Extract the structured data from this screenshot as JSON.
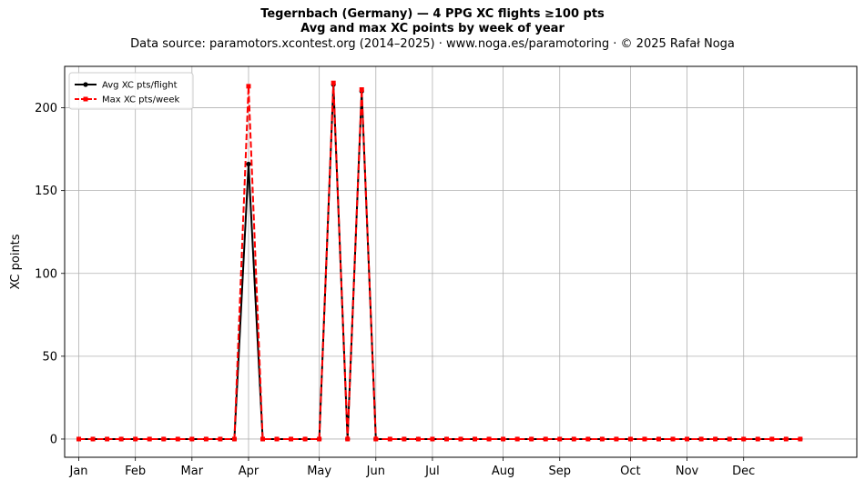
{
  "chart_data": {
    "type": "line",
    "title_line1": "Tegernbach (Germany)  —  4 PPG XC flights ≥100 pts",
    "title_line2": "Avg and max XC points by week of year",
    "subtitle": "Data source: paramotors.xcontest.org (2014–2025)  ·  www.noga.es/paramotoring  ·  © 2025 Rafał Noga",
    "xlabel": "",
    "ylabel": "XC points",
    "x": [
      1,
      2,
      3,
      4,
      5,
      6,
      7,
      8,
      9,
      10,
      11,
      12,
      13,
      14,
      15,
      16,
      17,
      18,
      19,
      20,
      21,
      22,
      23,
      24,
      25,
      26,
      27,
      28,
      29,
      30,
      31,
      32,
      33,
      34,
      35,
      36,
      37,
      38,
      39,
      40,
      41,
      42,
      43,
      44,
      45,
      46,
      47,
      48,
      49,
      50,
      51,
      52
    ],
    "xlim": [
      0,
      56
    ],
    "ylim": [
      -11,
      225
    ],
    "yticks": [
      0,
      50,
      100,
      150,
      200
    ],
    "xticks": [
      {
        "x": 1,
        "label": "Jan"
      },
      {
        "x": 5,
        "label": "Feb"
      },
      {
        "x": 9,
        "label": "Mar"
      },
      {
        "x": 13,
        "label": "Apr"
      },
      {
        "x": 18,
        "label": "May"
      },
      {
        "x": 22,
        "label": "Jun"
      },
      {
        "x": 26,
        "label": "Jul"
      },
      {
        "x": 31,
        "label": "Aug"
      },
      {
        "x": 35,
        "label": "Sep"
      },
      {
        "x": 40,
        "label": "Oct"
      },
      {
        "x": 44,
        "label": "Nov"
      },
      {
        "x": 48,
        "label": "Dec"
      }
    ],
    "grid": true,
    "legend_position": "top-left",
    "series": [
      {
        "name": "Avg XC pts/flight",
        "color": "#000000",
        "style": "solid",
        "marker": "circle",
        "values": [
          0,
          0,
          0,
          0,
          0,
          0,
          0,
          0,
          0,
          0,
          0,
          0,
          166,
          0,
          0,
          0,
          0,
          0,
          214,
          0,
          210,
          0,
          0,
          0,
          0,
          0,
          0,
          0,
          0,
          0,
          0,
          0,
          0,
          0,
          0,
          0,
          0,
          0,
          0,
          0,
          0,
          0,
          0,
          0,
          0,
          0,
          0,
          0,
          0,
          0,
          0,
          0
        ]
      },
      {
        "name": "Max XC pts/week",
        "color": "#ff0000",
        "style": "dashed",
        "marker": "square",
        "values": [
          0,
          0,
          0,
          0,
          0,
          0,
          0,
          0,
          0,
          0,
          0,
          0,
          213,
          0,
          0,
          0,
          0,
          0,
          215,
          0,
          211,
          0,
          0,
          0,
          0,
          0,
          0,
          0,
          0,
          0,
          0,
          0,
          0,
          0,
          0,
          0,
          0,
          0,
          0,
          0,
          0,
          0,
          0,
          0,
          0,
          0,
          0,
          0,
          0,
          0,
          0,
          0
        ]
      }
    ]
  }
}
